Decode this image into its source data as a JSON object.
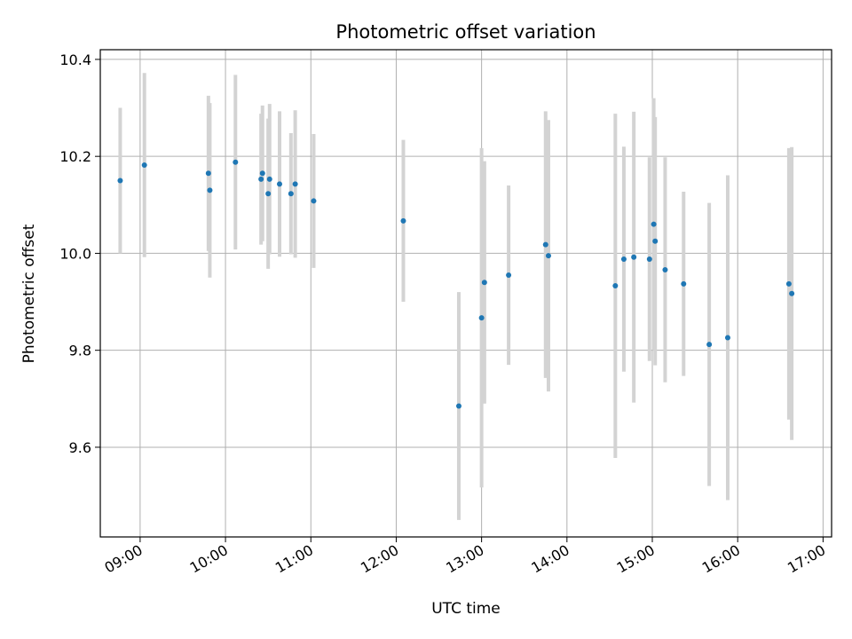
{
  "chart_data": {
    "type": "scatter",
    "title": "Photometric offset variation",
    "xlabel": "UTC time",
    "ylabel": "Photometric offset",
    "xlim": [
      "08:32",
      "17:06"
    ],
    "ylim": [
      9.415,
      10.42
    ],
    "x_ticks": [
      "09:00",
      "10:00",
      "11:00",
      "12:00",
      "13:00",
      "14:00",
      "15:00",
      "16:00",
      "17:00"
    ],
    "y_ticks": [
      9.6,
      9.8,
      10.0,
      10.2,
      10.4
    ],
    "y_tick_labels": [
      "9.6",
      "9.8",
      "10.0",
      "10.2",
      "10.4"
    ],
    "grid": true,
    "colors": {
      "point": "#1f77b4",
      "errorbar": "#d3d3d3",
      "grid": "#b0b0b0"
    },
    "points": [
      {
        "t": "08:46",
        "y": 10.15,
        "err": 0.15
      },
      {
        "t": "09:03",
        "y": 10.182,
        "err": 0.19
      },
      {
        "t": "09:48",
        "y": 10.165,
        "err": 0.16
      },
      {
        "t": "09:49",
        "y": 10.13,
        "err": 0.18
      },
      {
        "t": "10:07",
        "y": 10.188,
        "err": 0.18
      },
      {
        "t": "10:25",
        "y": 10.153,
        "err": 0.135
      },
      {
        "t": "10:26",
        "y": 10.165,
        "err": 0.14
      },
      {
        "t": "10:30",
        "y": 10.123,
        "err": 0.155
      },
      {
        "t": "10:31",
        "y": 10.153,
        "err": 0.155
      },
      {
        "t": "10:38",
        "y": 10.143,
        "err": 0.15
      },
      {
        "t": "10:46",
        "y": 10.123,
        "err": 0.125
      },
      {
        "t": "10:49",
        "y": 10.143,
        "err": 0.152
      },
      {
        "t": "11:02",
        "y": 10.108,
        "err": 0.138
      },
      {
        "t": "12:05",
        "y": 10.067,
        "err": 0.167
      },
      {
        "t": "12:44",
        "y": 9.685,
        "err": 0.235
      },
      {
        "t": "13:00",
        "y": 9.867,
        "err": 0.35
      },
      {
        "t": "13:02",
        "y": 9.94,
        "err": 0.25
      },
      {
        "t": "13:19",
        "y": 9.955,
        "err": 0.185
      },
      {
        "t": "13:45",
        "y": 10.018,
        "err": 0.275
      },
      {
        "t": "13:47",
        "y": 9.995,
        "err": 0.28
      },
      {
        "t": "14:34",
        "y": 9.933,
        "err": 0.355
      },
      {
        "t": "14:40",
        "y": 9.988,
        "err": 0.232
      },
      {
        "t": "14:47",
        "y": 9.992,
        "err": 0.3
      },
      {
        "t": "14:58",
        "y": 9.988,
        "err": 0.21
      },
      {
        "t": "15:01",
        "y": 10.06,
        "err": 0.26
      },
      {
        "t": "15:02",
        "y": 10.025,
        "err": 0.256
      },
      {
        "t": "15:09",
        "y": 9.966,
        "err": 0.232
      },
      {
        "t": "15:22",
        "y": 9.937,
        "err": 0.19
      },
      {
        "t": "15:40",
        "y": 9.812,
        "err": 0.292
      },
      {
        "t": "15:53",
        "y": 9.826,
        "err": 0.335
      },
      {
        "t": "16:36",
        "y": 9.937,
        "err": 0.28
      },
      {
        "t": "16:38",
        "y": 9.917,
        "err": 0.302
      }
    ]
  }
}
